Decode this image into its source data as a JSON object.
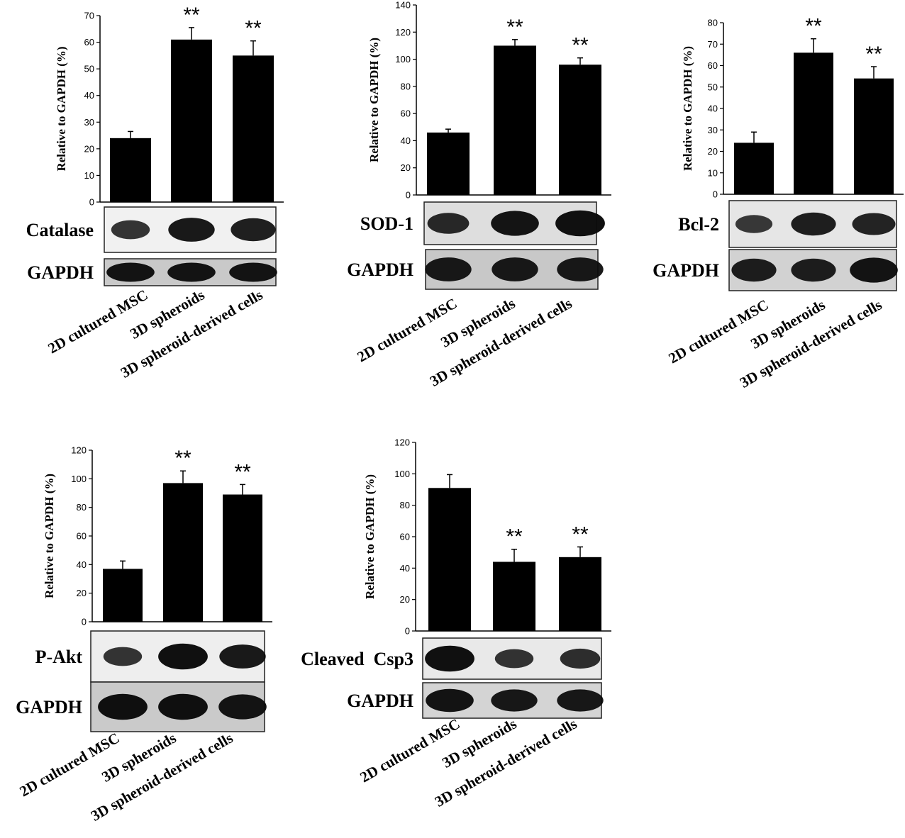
{
  "chart_data": [
    {
      "type": "bar",
      "categories": [
        "2D cultured MSC",
        "3D spheroids",
        "3D spheroid-derived cells"
      ],
      "values": [
        24,
        61,
        55
      ],
      "errors": [
        2.5,
        4.5,
        5.5
      ],
      "significance": [
        "",
        "**",
        "**"
      ],
      "ylabel": "Relative to GAPDH (%)",
      "ylim": [
        0,
        70
      ],
      "yticks": [
        0,
        10,
        20,
        30,
        40,
        50,
        60,
        70
      ],
      "blots": [
        {
          "label": "Catalase",
          "bands": [
            0.6,
            0.85,
            0.8
          ]
        },
        {
          "label": "GAPDH",
          "bands": [
            0.9,
            0.9,
            0.9
          ]
        }
      ]
    },
    {
      "type": "bar",
      "categories": [
        "2D cultured MSC",
        "3D spheroids",
        "3D spheroid-derived cells"
      ],
      "values": [
        46,
        110,
        96
      ],
      "errors": [
        2.5,
        4.5,
        5
      ],
      "significance": [
        "",
        "**",
        "**"
      ],
      "ylabel": "Relative to GAPDH (%)",
      "ylim": [
        0,
        140
      ],
      "yticks": [
        0,
        20,
        40,
        60,
        80,
        100,
        120,
        140
      ],
      "blots": [
        {
          "label": "SOD-1",
          "bands": [
            0.7,
            0.9,
            0.95
          ]
        },
        {
          "label": "GAPDH",
          "bands": [
            0.85,
            0.85,
            0.85
          ]
        }
      ]
    },
    {
      "type": "bar",
      "categories": [
        "2D cultured MSC",
        "3D spheroids",
        "3D spheroid-derived cells"
      ],
      "values": [
        24,
        66,
        54
      ],
      "errors": [
        5,
        6.5,
        5.5
      ],
      "significance": [
        "",
        "**",
        "**"
      ],
      "ylabel": "Relative to GAPDH (%)",
      "ylim": [
        0,
        80
      ],
      "yticks": [
        0,
        10,
        20,
        30,
        40,
        50,
        60,
        70,
        80
      ],
      "blots": [
        {
          "label": "Bcl-2",
          "bands": [
            0.55,
            0.8,
            0.75
          ]
        },
        {
          "label": "GAPDH",
          "bands": [
            0.8,
            0.8,
            0.9
          ]
        }
      ]
    },
    {
      "type": "bar",
      "categories": [
        "2D cultured MSC",
        "3D spheroids",
        "3D spheroid-derived cells"
      ],
      "values": [
        37,
        97,
        89
      ],
      "errors": [
        5.5,
        8.5,
        7
      ],
      "significance": [
        "",
        "**",
        "**"
      ],
      "ylabel": "Relative to GAPDH (%)",
      "ylim": [
        0,
        120
      ],
      "yticks": [
        0,
        20,
        40,
        60,
        80,
        100,
        120
      ],
      "blots": [
        {
          "label": "P-Akt",
          "bands": [
            0.6,
            0.95,
            0.85
          ]
        },
        {
          "label": "GAPDH",
          "bands": [
            0.95,
            0.95,
            0.9
          ]
        }
      ]
    },
    {
      "type": "bar",
      "categories": [
        "2D cultured MSC",
        "3D spheroids",
        "3D spheroid-derived cells"
      ],
      "values": [
        91,
        44,
        47
      ],
      "errors": [
        8.5,
        8,
        6.5
      ],
      "significance": [
        "",
        "**",
        "**"
      ],
      "ylabel": "Relative to GAPDH (%)",
      "ylim": [
        0,
        120
      ],
      "yticks": [
        0,
        20,
        40,
        60,
        80,
        100,
        120
      ],
      "blots": [
        {
          "label": "Cleaved  Csp3",
          "bands": [
            0.95,
            0.6,
            0.65
          ]
        },
        {
          "label": "GAPDH",
          "bands": [
            0.9,
            0.85,
            0.85
          ]
        }
      ]
    }
  ]
}
